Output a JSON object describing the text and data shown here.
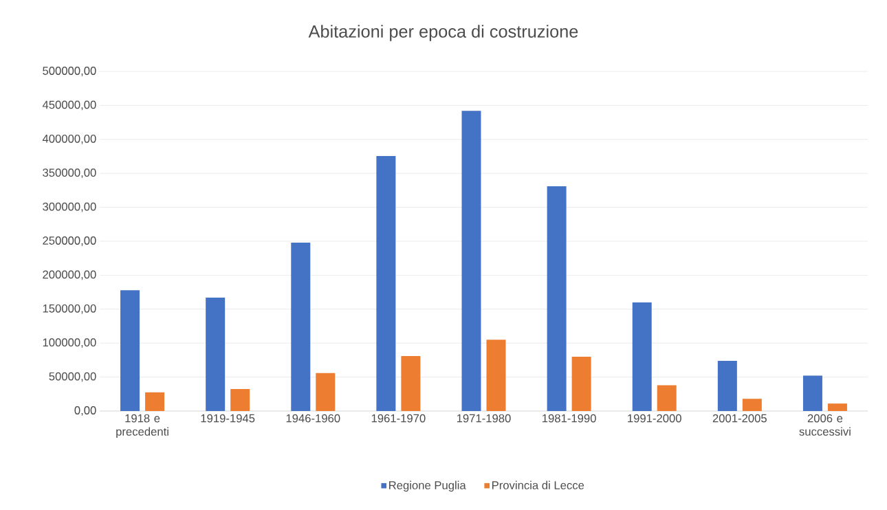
{
  "chart_data": {
    "type": "bar",
    "title": "Abitazioni per epoca di costruzione",
    "categories": [
      "1918 e precedenti",
      "1919-1945",
      "1946-1960",
      "1961-1970",
      "1971-1980",
      "1981-1990",
      "1991-2000",
      "2001-2005",
      "2006 e successivi"
    ],
    "series": [
      {
        "name": "Regione Puglia",
        "color": "#4472c4",
        "values": [
          178000,
          167000,
          248000,
          375500,
          442000,
          331000,
          160000,
          74000,
          52000
        ]
      },
      {
        "name": "Provincia di Lecce",
        "color": "#ed7d31",
        "values": [
          27500,
          32500,
          56000,
          81000,
          105000,
          80000,
          38000,
          18000,
          11000
        ]
      }
    ],
    "ylim": [
      0,
      500000
    ],
    "yticks": [
      {
        "value": 0,
        "label": "0,00"
      },
      {
        "value": 50000,
        "label": "50000,00"
      },
      {
        "value": 100000,
        "label": "100000,00"
      },
      {
        "value": 150000,
        "label": "150000,00"
      },
      {
        "value": 200000,
        "label": "200000,00"
      },
      {
        "value": 250000,
        "label": "250000,00"
      },
      {
        "value": 300000,
        "label": "300000,00"
      },
      {
        "value": 350000,
        "label": "350000,00"
      },
      {
        "value": 400000,
        "label": "400000,00"
      },
      {
        "value": 450000,
        "label": "450000,00"
      },
      {
        "value": 500000,
        "label": "500000,00"
      }
    ],
    "grid": "y",
    "legend": "bottom"
  }
}
